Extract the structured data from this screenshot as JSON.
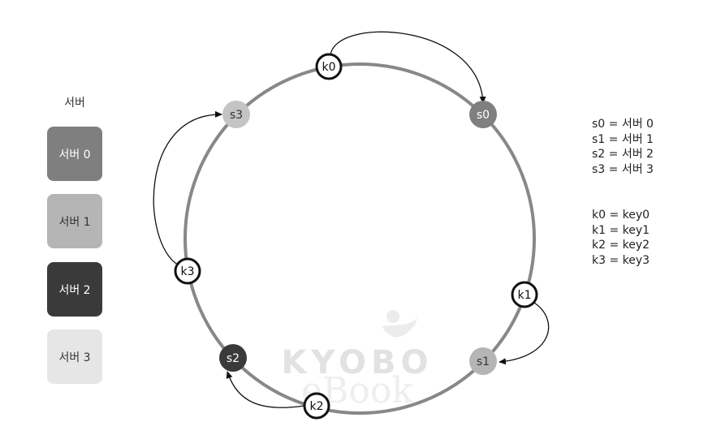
{
  "legend": {
    "title": "서버",
    "servers": [
      {
        "label": "서버 0",
        "color": "#7f7f7f",
        "text_color": "#ffffff"
      },
      {
        "label": "서버 1",
        "color": "#b5b5b5",
        "text_color": "#333333"
      },
      {
        "label": "서버 2",
        "color": "#3a3a3a",
        "text_color": "#ffffff"
      },
      {
        "label": "서버 3",
        "color": "#e6e6e6",
        "text_color": "#333333"
      }
    ]
  },
  "server_map": [
    "s0 = 서버 0",
    "s1 = 서버 1",
    "s2 = 서버 2",
    "s3 = 서버 3"
  ],
  "key_map": [
    "k0 = key0",
    "k1 = key1",
    "k2 = key2",
    "k3 = key3"
  ],
  "ring": {
    "color": "#888888",
    "servers": [
      {
        "label": "s0",
        "color": "#7f7f7f",
        "text_color": "#ffffff"
      },
      {
        "label": "s1",
        "color": "#b5b5b5",
        "text_color": "#333333"
      },
      {
        "label": "s2",
        "color": "#3a3a3a",
        "text_color": "#ffffff"
      },
      {
        "label": "s3",
        "color": "#c4c4c4",
        "text_color": "#333333"
      }
    ],
    "keys": [
      {
        "label": "k0",
        "maps_to": "s0"
      },
      {
        "label": "k1",
        "maps_to": "s1"
      },
      {
        "label": "k2",
        "maps_to": "s2"
      },
      {
        "label": "k3",
        "maps_to": "s3"
      }
    ]
  },
  "watermark": {
    "title": "KYOBO",
    "subtitle": "eBook"
  }
}
